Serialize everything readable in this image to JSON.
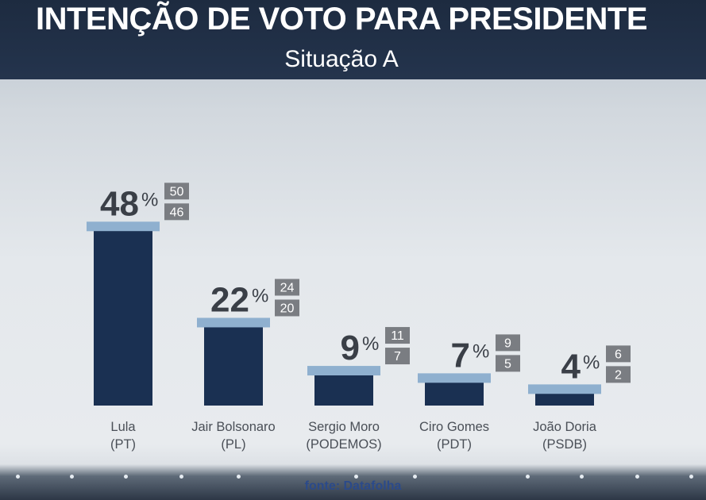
{
  "header": {
    "title": "INTENÇÃO DE VOTO PARA PRESIDENTE",
    "subtitle": "Situação A"
  },
  "footer": {
    "source": "fonte: Datafolha"
  },
  "percent_symbol": "%",
  "colors": {
    "header_bg": "#1d2b40",
    "bar": "#1a3052",
    "bar_cap": "#8fb0cf",
    "margin_box": "#7a7d82",
    "source_text": "#2b4a8a"
  },
  "chart_data": {
    "type": "bar",
    "title": "INTENÇÃO DE VOTO PARA PRESIDENTE",
    "subtitle": "Situação A",
    "categories": [
      "Lula (PT)",
      "Jair Bolsonaro (PL)",
      "Sergio Moro (PODEMOS)",
      "Ciro Gomes (PDT)",
      "João Doria (PSDB)"
    ],
    "category_lines": [
      [
        "Lula",
        "(PT)"
      ],
      [
        "Jair Bolsonaro",
        "(PL)"
      ],
      [
        "Sergio Moro",
        "(PODEMOS)"
      ],
      [
        "Ciro Gomes",
        "(PDT)"
      ],
      [
        "João Doria",
        "(PSDB)"
      ]
    ],
    "values": [
      48,
      22,
      9,
      7,
      4
    ],
    "upper": [
      50,
      24,
      11,
      9,
      6
    ],
    "lower": [
      46,
      20,
      7,
      5,
      2
    ],
    "unit": "%",
    "ylim": [
      0,
      50
    ],
    "grid": false,
    "legend": "none"
  }
}
